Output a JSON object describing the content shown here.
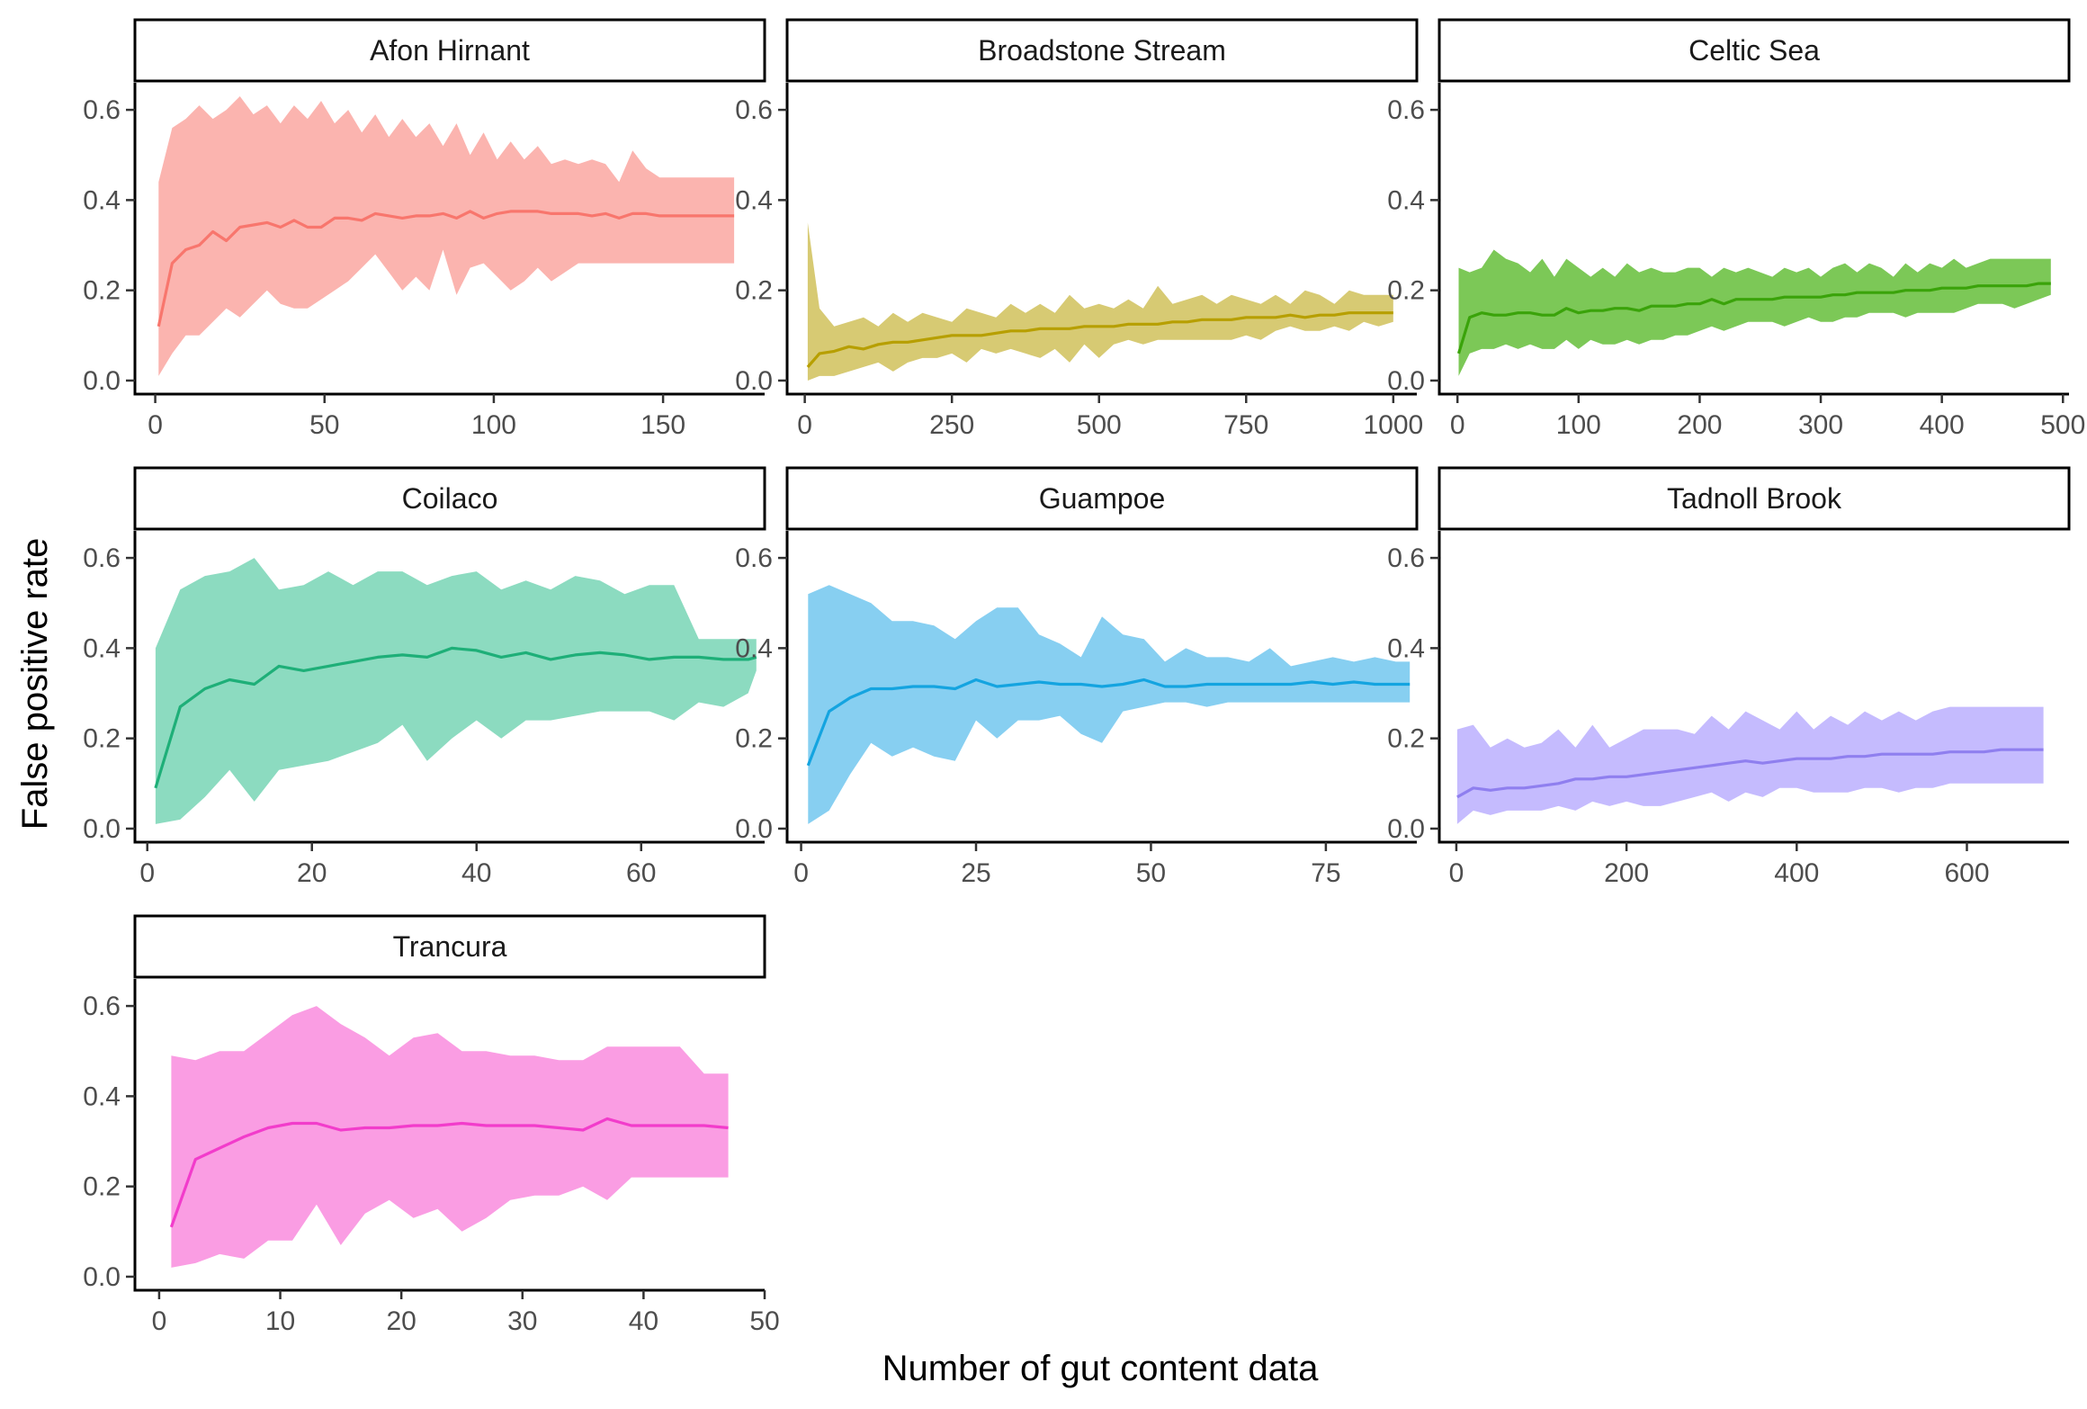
{
  "chart_data": {
    "type": "area",
    "xlabel": "Number of gut content data",
    "ylabel": "False positive rate",
    "grid": false,
    "legend": "none",
    "y_ticks": [
      0.0,
      0.2,
      0.4,
      0.6
    ],
    "y_tick_labels": [
      "0.0",
      "0.2",
      "0.4",
      "0.6"
    ],
    "ylim": [
      -0.03,
      0.66
    ],
    "panels": [
      {
        "name": "Afon Hirnant",
        "color": "#F8766D",
        "xlim": [
          -6,
          180
        ],
        "x_ticks": [
          0,
          50,
          100,
          150
        ],
        "x": [
          1,
          5,
          9,
          13,
          17,
          21,
          25,
          29,
          33,
          37,
          41,
          45,
          49,
          53,
          57,
          61,
          65,
          69,
          73,
          77,
          81,
          85,
          89,
          93,
          97,
          101,
          105,
          109,
          113,
          117,
          121,
          125,
          129,
          133,
          137,
          141,
          145,
          149,
          153,
          157,
          161,
          165,
          169,
          171
        ],
        "mean": [
          0.12,
          0.26,
          0.29,
          0.3,
          0.33,
          0.31,
          0.34,
          0.345,
          0.35,
          0.34,
          0.355,
          0.34,
          0.34,
          0.36,
          0.36,
          0.355,
          0.37,
          0.365,
          0.36,
          0.365,
          0.365,
          0.37,
          0.36,
          0.375,
          0.36,
          0.37,
          0.375,
          0.375,
          0.375,
          0.37,
          0.37,
          0.37,
          0.365,
          0.37,
          0.36,
          0.37,
          0.37,
          0.365,
          0.365,
          0.365,
          0.365,
          0.365,
          0.365,
          0.365
        ],
        "upper": [
          0.44,
          0.56,
          0.58,
          0.61,
          0.58,
          0.6,
          0.63,
          0.59,
          0.61,
          0.57,
          0.61,
          0.58,
          0.62,
          0.57,
          0.6,
          0.55,
          0.59,
          0.54,
          0.58,
          0.54,
          0.57,
          0.52,
          0.57,
          0.5,
          0.55,
          0.49,
          0.53,
          0.49,
          0.52,
          0.48,
          0.49,
          0.48,
          0.49,
          0.48,
          0.44,
          0.51,
          0.47,
          0.45,
          0.45,
          0.45,
          0.45,
          0.45,
          0.45,
          0.45
        ],
        "lower": [
          0.01,
          0.06,
          0.1,
          0.1,
          0.13,
          0.16,
          0.14,
          0.17,
          0.2,
          0.17,
          0.16,
          0.16,
          0.18,
          0.2,
          0.22,
          0.25,
          0.28,
          0.24,
          0.2,
          0.23,
          0.2,
          0.29,
          0.19,
          0.25,
          0.26,
          0.23,
          0.2,
          0.22,
          0.25,
          0.22,
          0.24,
          0.26,
          0.26,
          0.26,
          0.26,
          0.26,
          0.26,
          0.26,
          0.26,
          0.26,
          0.26,
          0.26,
          0.26,
          0.26
        ]
      },
      {
        "name": "Broadstone Stream",
        "color": "#B79F00",
        "xlim": [
          -30,
          1040
        ],
        "x_ticks": [
          0,
          250,
          500,
          750,
          1000
        ],
        "x": [
          5,
          25,
          50,
          75,
          100,
          125,
          150,
          175,
          200,
          225,
          250,
          275,
          300,
          325,
          350,
          375,
          400,
          425,
          450,
          475,
          500,
          525,
          550,
          575,
          600,
          625,
          650,
          675,
          700,
          725,
          750,
          775,
          800,
          825,
          850,
          875,
          900,
          925,
          950,
          975,
          1000
        ],
        "mean": [
          0.03,
          0.06,
          0.065,
          0.075,
          0.07,
          0.08,
          0.085,
          0.085,
          0.09,
          0.095,
          0.1,
          0.1,
          0.1,
          0.105,
          0.11,
          0.11,
          0.115,
          0.115,
          0.115,
          0.12,
          0.12,
          0.12,
          0.125,
          0.125,
          0.125,
          0.13,
          0.13,
          0.135,
          0.135,
          0.135,
          0.14,
          0.14,
          0.14,
          0.145,
          0.14,
          0.145,
          0.145,
          0.15,
          0.15,
          0.15,
          0.15
        ],
        "upper": [
          0.35,
          0.16,
          0.12,
          0.13,
          0.14,
          0.12,
          0.15,
          0.13,
          0.15,
          0.14,
          0.13,
          0.16,
          0.15,
          0.14,
          0.17,
          0.15,
          0.17,
          0.15,
          0.19,
          0.16,
          0.17,
          0.16,
          0.18,
          0.16,
          0.21,
          0.17,
          0.18,
          0.19,
          0.17,
          0.19,
          0.18,
          0.17,
          0.19,
          0.17,
          0.2,
          0.19,
          0.17,
          0.2,
          0.19,
          0.19,
          0.19
        ],
        "lower": [
          0.0,
          0.01,
          0.01,
          0.02,
          0.03,
          0.04,
          0.02,
          0.04,
          0.05,
          0.05,
          0.06,
          0.04,
          0.07,
          0.06,
          0.07,
          0.06,
          0.05,
          0.07,
          0.04,
          0.08,
          0.05,
          0.08,
          0.09,
          0.08,
          0.09,
          0.09,
          0.09,
          0.09,
          0.09,
          0.09,
          0.1,
          0.09,
          0.11,
          0.12,
          0.11,
          0.11,
          0.12,
          0.11,
          0.13,
          0.12,
          0.13
        ]
      },
      {
        "name": "Celtic Sea",
        "color": "#00BA38",
        "line_color": "#3AA30A",
        "fill_color": "#7CC857",
        "xlim": [
          -15,
          505
        ],
        "x_ticks": [
          0,
          100,
          200,
          300,
          400,
          500
        ],
        "x": [
          1,
          10,
          20,
          30,
          40,
          50,
          60,
          70,
          80,
          90,
          100,
          110,
          120,
          130,
          140,
          150,
          160,
          170,
          180,
          190,
          200,
          210,
          220,
          230,
          240,
          250,
          260,
          270,
          280,
          290,
          300,
          310,
          320,
          330,
          340,
          350,
          360,
          370,
          380,
          390,
          400,
          410,
          420,
          430,
          440,
          450,
          460,
          470,
          480,
          490
        ],
        "mean": [
          0.06,
          0.14,
          0.15,
          0.145,
          0.145,
          0.15,
          0.15,
          0.145,
          0.145,
          0.16,
          0.15,
          0.155,
          0.155,
          0.16,
          0.16,
          0.155,
          0.165,
          0.165,
          0.165,
          0.17,
          0.17,
          0.18,
          0.17,
          0.18,
          0.18,
          0.18,
          0.18,
          0.185,
          0.185,
          0.185,
          0.185,
          0.19,
          0.19,
          0.195,
          0.195,
          0.195,
          0.195,
          0.2,
          0.2,
          0.2,
          0.205,
          0.205,
          0.205,
          0.21,
          0.21,
          0.21,
          0.21,
          0.21,
          0.215,
          0.215
        ],
        "upper": [
          0.25,
          0.24,
          0.25,
          0.29,
          0.27,
          0.26,
          0.24,
          0.27,
          0.23,
          0.27,
          0.25,
          0.23,
          0.25,
          0.23,
          0.26,
          0.24,
          0.25,
          0.24,
          0.24,
          0.25,
          0.25,
          0.23,
          0.25,
          0.24,
          0.25,
          0.24,
          0.23,
          0.25,
          0.24,
          0.25,
          0.23,
          0.25,
          0.26,
          0.24,
          0.26,
          0.25,
          0.23,
          0.26,
          0.24,
          0.26,
          0.25,
          0.27,
          0.25,
          0.26,
          0.27,
          0.27,
          0.27,
          0.27,
          0.27,
          0.27
        ],
        "lower": [
          0.01,
          0.06,
          0.07,
          0.07,
          0.08,
          0.07,
          0.08,
          0.07,
          0.07,
          0.09,
          0.07,
          0.09,
          0.08,
          0.08,
          0.09,
          0.08,
          0.09,
          0.09,
          0.1,
          0.1,
          0.11,
          0.12,
          0.11,
          0.12,
          0.13,
          0.13,
          0.13,
          0.12,
          0.13,
          0.14,
          0.13,
          0.13,
          0.14,
          0.14,
          0.15,
          0.15,
          0.15,
          0.14,
          0.15,
          0.15,
          0.15,
          0.15,
          0.16,
          0.17,
          0.17,
          0.17,
          0.16,
          0.17,
          0.18,
          0.19
        ]
      },
      {
        "name": "Coilaco",
        "color": "#00BF7D",
        "line_color": "#1EAF78",
        "fill_color": "#8CDBC0",
        "xlim": [
          -1.5,
          75
        ],
        "x_ticks": [
          0,
          20,
          40,
          60
        ],
        "x": [
          1,
          4,
          7,
          10,
          13,
          16,
          19,
          22,
          25,
          28,
          31,
          34,
          37,
          40,
          43,
          46,
          49,
          52,
          55,
          58,
          61,
          64,
          67,
          70,
          73,
          74
        ],
        "mean": [
          0.09,
          0.27,
          0.31,
          0.33,
          0.32,
          0.36,
          0.35,
          0.36,
          0.37,
          0.38,
          0.385,
          0.38,
          0.4,
          0.395,
          0.38,
          0.39,
          0.375,
          0.385,
          0.39,
          0.385,
          0.375,
          0.38,
          0.38,
          0.375,
          0.375,
          0.38
        ],
        "upper": [
          0.4,
          0.53,
          0.56,
          0.57,
          0.6,
          0.53,
          0.54,
          0.57,
          0.54,
          0.57,
          0.57,
          0.54,
          0.56,
          0.57,
          0.53,
          0.55,
          0.53,
          0.56,
          0.55,
          0.52,
          0.54,
          0.54,
          0.42,
          0.42,
          0.42,
          0.42
        ],
        "lower": [
          0.01,
          0.02,
          0.07,
          0.13,
          0.06,
          0.13,
          0.14,
          0.15,
          0.17,
          0.19,
          0.23,
          0.15,
          0.2,
          0.24,
          0.2,
          0.24,
          0.24,
          0.25,
          0.26,
          0.26,
          0.26,
          0.24,
          0.28,
          0.27,
          0.3,
          0.35
        ]
      },
      {
        "name": "Guampoe",
        "color": "#00B0F6",
        "line_color": "#14A4E0",
        "fill_color": "#87CFF1",
        "xlim": [
          -2,
          88
        ],
        "x_ticks": [
          0,
          25,
          50,
          75
        ],
        "x": [
          1,
          4,
          7,
          10,
          13,
          16,
          19,
          22,
          25,
          28,
          31,
          34,
          37,
          40,
          43,
          46,
          49,
          52,
          55,
          58,
          61,
          64,
          67,
          70,
          73,
          76,
          79,
          82,
          85,
          87
        ],
        "mean": [
          0.14,
          0.26,
          0.29,
          0.31,
          0.31,
          0.315,
          0.315,
          0.31,
          0.33,
          0.315,
          0.32,
          0.325,
          0.32,
          0.32,
          0.315,
          0.32,
          0.33,
          0.315,
          0.315,
          0.32,
          0.32,
          0.32,
          0.32,
          0.32,
          0.325,
          0.32,
          0.325,
          0.32,
          0.32,
          0.32
        ],
        "upper": [
          0.52,
          0.54,
          0.52,
          0.5,
          0.46,
          0.46,
          0.45,
          0.42,
          0.46,
          0.49,
          0.49,
          0.43,
          0.41,
          0.38,
          0.47,
          0.43,
          0.42,
          0.37,
          0.4,
          0.38,
          0.38,
          0.37,
          0.4,
          0.36,
          0.37,
          0.38,
          0.37,
          0.38,
          0.37,
          0.37
        ],
        "lower": [
          0.01,
          0.04,
          0.12,
          0.19,
          0.16,
          0.18,
          0.16,
          0.15,
          0.24,
          0.2,
          0.24,
          0.24,
          0.25,
          0.21,
          0.19,
          0.26,
          0.27,
          0.28,
          0.28,
          0.27,
          0.28,
          0.28,
          0.28,
          0.28,
          0.28,
          0.28,
          0.28,
          0.28,
          0.28,
          0.28
        ]
      },
      {
        "name": "Tadnoll Brook",
        "color": "#9590FF",
        "line_color": "#8F7FEF",
        "fill_color": "#C5BBFE",
        "xlim": [
          -20,
          720
        ],
        "x_ticks": [
          0,
          200,
          400,
          600
        ],
        "x": [
          1,
          20,
          40,
          60,
          80,
          100,
          120,
          140,
          160,
          180,
          200,
          220,
          240,
          260,
          280,
          300,
          320,
          340,
          360,
          380,
          400,
          420,
          440,
          460,
          480,
          500,
          520,
          540,
          560,
          580,
          600,
          620,
          640,
          660,
          680,
          690
        ],
        "mean": [
          0.07,
          0.09,
          0.085,
          0.09,
          0.09,
          0.095,
          0.1,
          0.11,
          0.11,
          0.115,
          0.115,
          0.12,
          0.125,
          0.13,
          0.135,
          0.14,
          0.145,
          0.15,
          0.145,
          0.15,
          0.155,
          0.155,
          0.155,
          0.16,
          0.16,
          0.165,
          0.165,
          0.165,
          0.165,
          0.17,
          0.17,
          0.17,
          0.175,
          0.175,
          0.175,
          0.175
        ],
        "upper": [
          0.22,
          0.23,
          0.18,
          0.2,
          0.18,
          0.19,
          0.22,
          0.18,
          0.23,
          0.18,
          0.2,
          0.22,
          0.22,
          0.22,
          0.21,
          0.25,
          0.22,
          0.26,
          0.24,
          0.22,
          0.26,
          0.22,
          0.25,
          0.23,
          0.26,
          0.24,
          0.26,
          0.24,
          0.26,
          0.27,
          0.27,
          0.27,
          0.27,
          0.27,
          0.27,
          0.27
        ],
        "lower": [
          0.01,
          0.04,
          0.03,
          0.04,
          0.04,
          0.04,
          0.05,
          0.04,
          0.06,
          0.05,
          0.06,
          0.05,
          0.05,
          0.06,
          0.07,
          0.08,
          0.06,
          0.08,
          0.07,
          0.09,
          0.09,
          0.08,
          0.08,
          0.08,
          0.09,
          0.09,
          0.08,
          0.09,
          0.09,
          0.1,
          0.1,
          0.1,
          0.1,
          0.1,
          0.1,
          0.1
        ]
      },
      {
        "name": "Trancura",
        "color": "#FF61C3",
        "line_color": "#F23CCB",
        "fill_color": "#FA9DE3",
        "xlim": [
          -2,
          50
        ],
        "x_ticks": [
          0,
          10,
          20,
          30,
          40,
          50
        ],
        "x": [
          1,
          3,
          5,
          7,
          9,
          11,
          13,
          15,
          17,
          19,
          21,
          23,
          25,
          27,
          29,
          31,
          33,
          35,
          37,
          39,
          41,
          43,
          45,
          47
        ],
        "mean": [
          0.11,
          0.26,
          0.285,
          0.31,
          0.33,
          0.34,
          0.34,
          0.325,
          0.33,
          0.33,
          0.335,
          0.335,
          0.34,
          0.335,
          0.335,
          0.335,
          0.33,
          0.325,
          0.35,
          0.335,
          0.335,
          0.335,
          0.335,
          0.33
        ],
        "upper": [
          0.49,
          0.48,
          0.5,
          0.5,
          0.54,
          0.58,
          0.6,
          0.56,
          0.53,
          0.49,
          0.53,
          0.54,
          0.5,
          0.5,
          0.49,
          0.49,
          0.48,
          0.48,
          0.51,
          0.51,
          0.51,
          0.51,
          0.45,
          0.45
        ],
        "lower": [
          0.02,
          0.03,
          0.05,
          0.04,
          0.08,
          0.08,
          0.16,
          0.07,
          0.14,
          0.17,
          0.13,
          0.15,
          0.1,
          0.13,
          0.17,
          0.18,
          0.18,
          0.2,
          0.17,
          0.22,
          0.22,
          0.22,
          0.22,
          0.22
        ]
      }
    ]
  }
}
